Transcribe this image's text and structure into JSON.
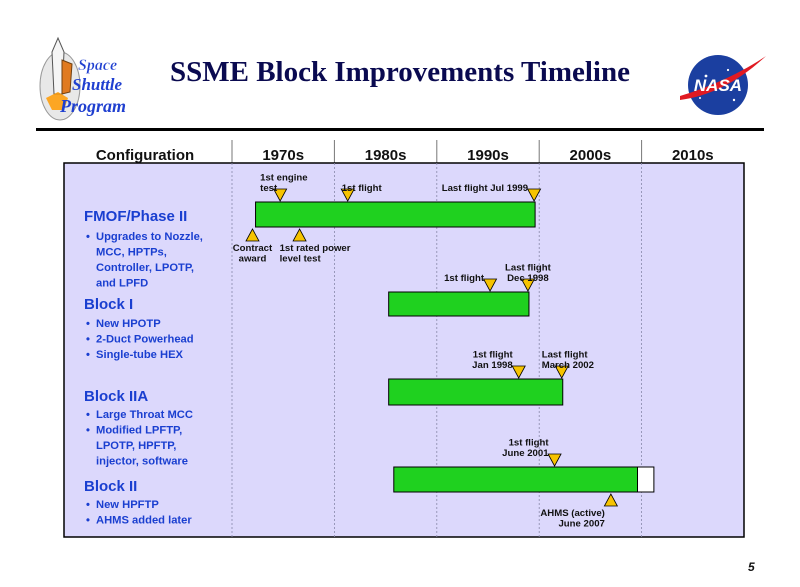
{
  "title": "SSME Block Improvements Timeline",
  "logo_left": {
    "line1": "Space",
    "line2": "Shuttle",
    "line3": "Program"
  },
  "logo_right": {
    "text": "NASA"
  },
  "page_number": "5",
  "colors": {
    "bar": "#1fd11f",
    "panel": "#dcd8fc",
    "marker": "#f6c300",
    "title": "#0a0a50",
    "labels": "#1a3fd0"
  },
  "chart_data": {
    "type": "gantt",
    "header": {
      "label": "Configuration",
      "decades": [
        "1970s",
        "1980s",
        "1990s",
        "2000s",
        "2010s"
      ]
    },
    "xlim": [
      1970,
      2020
    ],
    "configurations": [
      {
        "name": "FMOF/Phase II",
        "items": [
          "Upgrades to Nozzle,",
          "MCC, HPTPs,",
          "Controller, LPOTP,",
          "and LPFD"
        ],
        "start": 1972.3,
        "end": 1999.6
      },
      {
        "name": "Block I",
        "items": [
          "New HPOTP",
          "2-Duct Powerhead",
          "Single-tube HEX"
        ],
        "start": 1985.3,
        "end": 1999.0
      },
      {
        "name": "Block IIA",
        "items": [
          "Large Throat MCC",
          "Modified LPFTP,",
          "LPOTP, HPFTP,",
          "injector, software"
        ],
        "start": 1985.3,
        "end": 2002.3
      },
      {
        "name": "Block II",
        "items": [
          "New HPFTP",
          "AHMS added later"
        ],
        "start": 1985.8,
        "end": 2009.6,
        "open_end": 2011.2
      }
    ],
    "milestones": [
      {
        "row": 0,
        "date": 1974.7,
        "pos": "above",
        "lines": [
          "1st engine",
          "test"
        ],
        "align": "left"
      },
      {
        "row": 0,
        "date": 1981.3,
        "pos": "above",
        "lines": [
          "1st flight"
        ],
        "align": "left"
      },
      {
        "row": 0,
        "date": 1999.5,
        "pos": "above",
        "lines": [
          "Last flight Jul 1999"
        ],
        "align": "right"
      },
      {
        "row": 0,
        "date": 1972.0,
        "pos": "below",
        "lines": [
          "Contract",
          "award"
        ],
        "align": "center"
      },
      {
        "row": 0,
        "date": 1976.6,
        "pos": "below",
        "lines": [
          "1st rated power",
          "level test"
        ],
        "align": "left"
      },
      {
        "row": 1,
        "date": 1995.2,
        "pos": "above",
        "lines": [
          "1st flight"
        ],
        "align": "right"
      },
      {
        "row": 1,
        "date": 1998.9,
        "pos": "above",
        "lines": [
          "Last flight",
          "Dec 1998"
        ],
        "align": "center"
      },
      {
        "row": 2,
        "date": 1998.0,
        "pos": "above",
        "lines": [
          "1st flight",
          "Jan 1998"
        ],
        "align": "right"
      },
      {
        "row": 2,
        "date": 2002.2,
        "pos": "above",
        "lines": [
          "Last flight",
          "March 2002"
        ],
        "align": "left"
      },
      {
        "row": 3,
        "date": 2001.5,
        "pos": "above",
        "lines": [
          "1st flight",
          "June 2001"
        ],
        "align": "right"
      },
      {
        "row": 3,
        "date": 2007.0,
        "pos": "below",
        "lines": [
          "AHMS (active)",
          "June 2007"
        ],
        "align": "right"
      }
    ]
  }
}
